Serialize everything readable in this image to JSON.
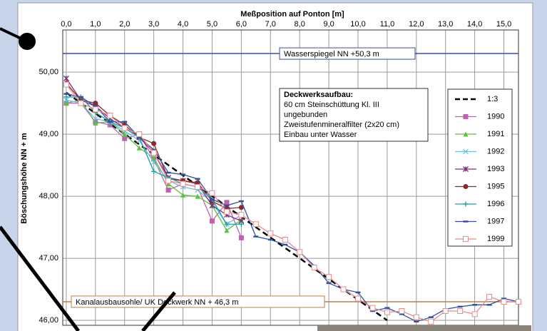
{
  "chart_data": {
    "type": "line",
    "title": "Meßposition auf Ponton [m]",
    "y_label": "Böschungshöhe NN + m",
    "x": [
      0,
      0.5,
      1,
      1.5,
      2,
      2.5,
      3,
      3.5,
      4,
      4.5,
      5,
      5.5,
      6,
      6.5,
      7,
      7.5,
      8,
      8.5,
      9,
      9.5,
      10,
      10.5,
      11,
      11.5,
      12,
      12.5,
      13,
      13.5,
      14,
      14.5,
      15,
      15.5
    ],
    "xlim": [
      -0.12,
      15.5
    ],
    "xticks": [
      {
        "value": 0,
        "label": "0,0"
      },
      {
        "value": 1,
        "label": "1,0"
      },
      {
        "value": 2,
        "label": "2,0"
      },
      {
        "value": 3,
        "label": "3,0"
      },
      {
        "value": 4,
        "label": "4,0"
      },
      {
        "value": 5,
        "label": "5,0"
      },
      {
        "value": 6,
        "label": "6,0"
      },
      {
        "value": 7,
        "label": "7,0"
      },
      {
        "value": 8,
        "label": "8,0"
      },
      {
        "value": 9,
        "label": "9,0"
      },
      {
        "value": 10,
        "label": "10,0"
      },
      {
        "value": 11,
        "label": "11,0"
      },
      {
        "value": 12,
        "label": "12,0"
      },
      {
        "value": 13,
        "label": "13,0"
      },
      {
        "value": 14,
        "label": "14,0"
      },
      {
        "value": 15,
        "label": "15,0"
      }
    ],
    "ylim": [
      45.92,
      50.68
    ],
    "yticks": [
      {
        "value": 46,
        "label": "46,00"
      },
      {
        "value": 47,
        "label": "47,00"
      },
      {
        "value": 48,
        "label": "48,00"
      },
      {
        "value": 49,
        "label": "49,00"
      },
      {
        "value": 50,
        "label": "50,00"
      }
    ],
    "grid": true,
    "reference_lines": [
      {
        "value": 50.3,
        "label": "Wasserspiegel NN +50,3 m",
        "color": "#3a4ea8"
      },
      {
        "value": 46.3,
        "label": "Kanalausbausohle/ UK Deckwerk NN + 46,3 m",
        "color": "#b8804e"
      }
    ],
    "annotation": {
      "title": "Deckwerksaufbau:",
      "lines": [
        "60 cm Steinschüttung Kl. III",
        "ungebunden",
        "Zweistufenmineralfilter (2x20 cm)",
        "Einbau unter Wasser"
      ]
    },
    "series": [
      {
        "name": "1:3",
        "color": "#000000",
        "dashed": true,
        "marker": "none",
        "x": [
          0,
          11
        ],
        "values": [
          49.67,
          46.0
        ]
      },
      {
        "name": "1990",
        "color": "#c060b0",
        "marker": "square",
        "values": [
          49.5,
          49.5,
          49.2,
          49.15,
          48.93,
          49.0,
          48.6,
          48.1,
          48.2,
          48.15,
          47.6,
          47.9,
          47.33,
          null,
          null,
          null,
          null,
          null,
          null,
          null,
          null,
          null,
          null,
          null,
          null,
          null,
          null,
          null,
          null,
          null,
          null,
          null
        ]
      },
      {
        "name": "1991",
        "color": "#5cc040",
        "marker": "triangle",
        "values": [
          49.5,
          49.55,
          49.18,
          49.2,
          49.0,
          48.78,
          48.62,
          48.2,
          48.02,
          48.0,
          47.85,
          47.45,
          47.62,
          null,
          null,
          null,
          null,
          null,
          null,
          null,
          null,
          null,
          null,
          null,
          null,
          null,
          null,
          null,
          null,
          null,
          null,
          null
        ]
      },
      {
        "name": "1992",
        "color": "#6cc0e0",
        "marker": "x",
        "values": [
          49.55,
          49.5,
          49.25,
          49.2,
          49.05,
          48.9,
          48.55,
          48.25,
          48.15,
          48.1,
          47.9,
          47.55,
          47.7,
          null,
          null,
          null,
          null,
          null,
          null,
          null,
          null,
          null,
          null,
          null,
          null,
          null,
          null,
          null,
          null,
          null,
          null,
          null
        ]
      },
      {
        "name": "1993",
        "color": "#803080",
        "marker": "star",
        "values": [
          49.9,
          49.55,
          49.45,
          49.25,
          49.1,
          48.95,
          48.7,
          48.3,
          48.25,
          48.2,
          47.85,
          47.7,
          47.6,
          null,
          null,
          null,
          null,
          null,
          null,
          null,
          null,
          null,
          null,
          null,
          null,
          null,
          null,
          null,
          null,
          null,
          null,
          null
        ]
      },
      {
        "name": "1995",
        "color": "#8a2a2a",
        "marker": "circle",
        "values": [
          49.82,
          49.55,
          49.5,
          49.3,
          49.15,
          48.95,
          48.85,
          48.28,
          48.25,
          48.22,
          47.92,
          47.8,
          47.82,
          null,
          null,
          null,
          null,
          null,
          null,
          null,
          null,
          null,
          null,
          null,
          null,
          null,
          null,
          null,
          null,
          null,
          null,
          null
        ]
      },
      {
        "name": "1996",
        "color": "#20a0a0",
        "marker": "plus",
        "values": [
          49.6,
          49.6,
          49.35,
          49.2,
          49.1,
          48.95,
          48.4,
          48.3,
          48.2,
          48.15,
          47.95,
          47.55,
          47.55,
          null,
          null,
          null,
          null,
          null,
          null,
          null,
          null,
          null,
          null,
          null,
          null,
          null,
          null,
          null,
          null,
          null,
          null,
          null
        ]
      },
      {
        "name": "1997",
        "color": "#3050a0",
        "marker": "dash",
        "values": [
          49.65,
          49.6,
          49.45,
          49.2,
          49.2,
          48.95,
          48.75,
          48.38,
          48.35,
          48.28,
          47.95,
          47.85,
          47.92,
          47.35,
          47.3,
          47.22,
          47.1,
          46.88,
          46.6,
          46.5,
          46.45,
          46.15,
          46.2,
          46.1,
          45.98,
          46.05,
          46.18,
          46.22,
          46.25,
          46.25,
          46.35,
          46.3
        ]
      },
      {
        "name": "1999",
        "color": "#e88c8c",
        "marker": "open-square",
        "values": [
          49.8,
          49.5,
          49.4,
          49.3,
          49.1,
          49.0,
          48.7,
          48.25,
          48.2,
          48.15,
          48.05,
          47.75,
          47.7,
          47.55,
          47.4,
          47.3,
          47.1,
          46.85,
          46.7,
          46.5,
          46.35,
          46.2,
          46.13,
          46.15,
          46.05,
          45.98,
          46.15,
          46.15,
          46.1,
          46.38,
          46.3,
          46.3
        ]
      }
    ]
  }
}
